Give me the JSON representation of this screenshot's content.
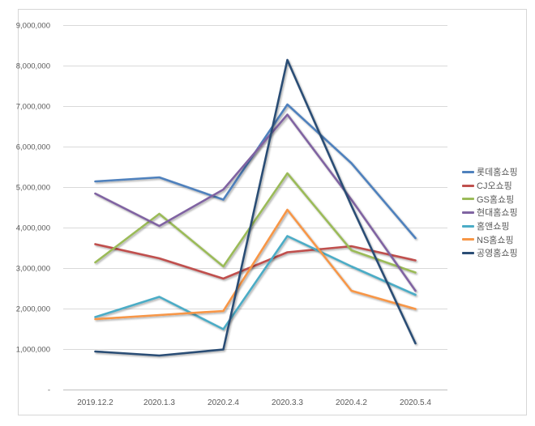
{
  "chart_data": {
    "type": "line",
    "title": "",
    "categories": [
      "2019.12.2",
      "2020.1.3",
      "2020.2.4",
      "2020.3.3",
      "2020.4.2",
      "2020.5.4"
    ],
    "series": [
      {
        "id": "lotte-home-shopping",
        "name": "롯데홈쇼핑",
        "color": "#4F81BD",
        "values": [
          5150000,
          5250000,
          4700000,
          7050000,
          5600000,
          3750000
        ]
      },
      {
        "id": "cj-o-shopping",
        "name": "CJ오쇼핑",
        "color": "#C0504D",
        "values": [
          3600000,
          3250000,
          2750000,
          3400000,
          3550000,
          3200000
        ]
      },
      {
        "id": "gs-home-shopping",
        "name": "GS홈쇼핑",
        "color": "#9BBB59",
        "values": [
          3150000,
          4350000,
          3050000,
          5350000,
          3450000,
          2900000
        ]
      },
      {
        "id": "hyundai-home-shopping",
        "name": "현대홈쇼핑",
        "color": "#8064A2",
        "values": [
          4850000,
          4050000,
          4950000,
          6800000,
          4700000,
          2450000
        ]
      },
      {
        "id": "home-and-shopping",
        "name": "홈앤쇼핑",
        "color": "#4BACC6",
        "values": [
          1800000,
          2300000,
          1500000,
          3800000,
          3050000,
          2350000
        ]
      },
      {
        "id": "ns-home-shopping",
        "name": "NS홈쇼핑",
        "color": "#F79646",
        "values": [
          1750000,
          1850000,
          1950000,
          4450000,
          2450000,
          2000000
        ]
      },
      {
        "id": "gongyoung-home-shopping",
        "name": "공영홈쇼핑",
        "color": "#2A4D75",
        "values": [
          950000,
          850000,
          1000000,
          8150000,
          4550000,
          1150000
        ]
      }
    ],
    "y_axis": {
      "min": 0,
      "max": 9000000,
      "step": 1000000,
      "zero_label": "-"
    },
    "x_axis": {
      "label": ""
    },
    "legend_position": "right",
    "grid": true,
    "gridline_color": "#D9D9D9",
    "axis_line_color": "#BFBFBF",
    "tick_label_color": "#595959"
  }
}
